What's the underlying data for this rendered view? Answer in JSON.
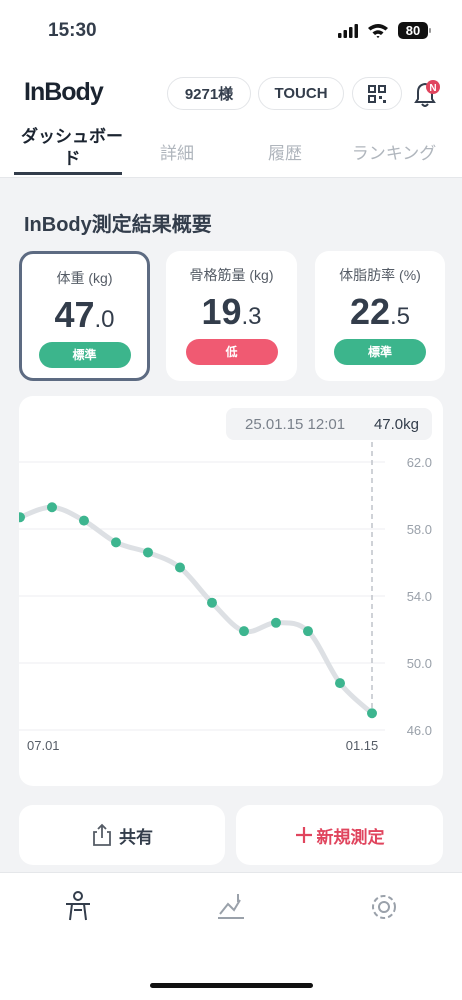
{
  "status_bar": {
    "time": "15:30",
    "battery": "80"
  },
  "header": {
    "logo": "InBody",
    "badge_points": "9271様",
    "badge_touch": "TOUCH",
    "notification": "N"
  },
  "tabs": [
    "ダッシュボード",
    "詳細",
    "履歴",
    "ランキング"
  ],
  "section_title": "InBody測定結果概要",
  "cards": [
    {
      "label": "体重 (kg)",
      "value_int": "47",
      "value_dec": ".0",
      "status": "標準",
      "status_color": "#3cb58c"
    },
    {
      "label": "骨格筋量 (kg)",
      "value_int": "19",
      "value_dec": ".3",
      "status": "低",
      "status_color": "#f05a72"
    },
    {
      "label": "体脂肪率 (%)",
      "value_int": "22",
      "value_dec": ".5",
      "status": "標準",
      "status_color": "#3cb58c"
    }
  ],
  "chart_data": {
    "type": "line",
    "categories": [
      "07.01",
      null,
      null,
      null,
      null,
      null,
      null,
      null,
      null,
      null,
      null,
      "01.15"
    ],
    "values": [
      58.7,
      59.3,
      58.5,
      57.2,
      56.6,
      55.7,
      53.6,
      51.9,
      52.4,
      51.9,
      48.8,
      47.0
    ],
    "color": "#3db58f",
    "line_color": "#dde0e4",
    "ylim": [
      46,
      62
    ],
    "yticks": [
      {
        "value": 62,
        "label": "62.0"
      },
      {
        "value": 58,
        "label": "58.0"
      },
      {
        "value": 54,
        "label": "54.0"
      },
      {
        "value": 50,
        "label": "50.0"
      },
      {
        "value": 46,
        "label": "46.0"
      }
    ],
    "grid": true,
    "tooltip": {
      "date": "25.01.15 12:01",
      "value": "47.0kg"
    }
  },
  "buttons": {
    "share": "共有",
    "new_measure": "新規測定"
  }
}
